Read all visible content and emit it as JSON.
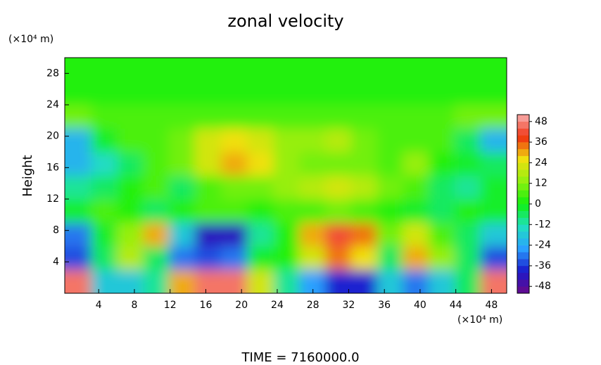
{
  "chart_data": {
    "type": "contour",
    "title": "zonal velocity",
    "ylabel": "Height",
    "yunit": "(×10⁴ m)",
    "xunit": "(×10⁴ m)",
    "footer": "TIME = 7160000.0",
    "xlim": [
      0.2,
      49.7
    ],
    "ylim": [
      0,
      30
    ],
    "xticks": [
      4,
      8,
      12,
      16,
      20,
      24,
      28,
      32,
      36,
      40,
      44,
      48
    ],
    "yticks": [
      4,
      8,
      12,
      16,
      20,
      24,
      28
    ],
    "x": [
      1.7,
      4.6,
      7.5,
      10.4,
      13.3,
      16.2,
      19.2,
      22.1,
      25.0,
      27.9,
      30.8,
      33.7,
      36.6,
      39.5,
      42.4,
      45.3,
      48.2
    ],
    "y": [
      1.5,
      4.5,
      7.5,
      10.5,
      13.5,
      16.5,
      19.5,
      22.5,
      25.5,
      28.5
    ],
    "z": [
      [
        44,
        -18,
        -20,
        -10,
        30,
        46,
        46,
        20,
        -10,
        -25,
        -40,
        -38,
        -20,
        -32,
        -20,
        -5,
        44
      ],
      [
        -34,
        -5,
        16,
        -8,
        -32,
        -36,
        -30,
        -4,
        2,
        20,
        32,
        24,
        -6,
        28,
        14,
        -6,
        -34
      ],
      [
        -32,
        -2,
        14,
        30,
        -20,
        -42,
        -44,
        -12,
        0,
        30,
        40,
        34,
        10,
        20,
        6,
        -8,
        -20
      ],
      [
        -4,
        4,
        2,
        -6,
        0,
        4,
        6,
        2,
        4,
        6,
        8,
        6,
        2,
        -2,
        -6,
        0,
        -4
      ],
      [
        -10,
        -6,
        2,
        6,
        -8,
        4,
        8,
        10,
        14,
        18,
        20,
        16,
        10,
        4,
        -6,
        -10,
        -4
      ],
      [
        -22,
        -16,
        -6,
        4,
        8,
        22,
        30,
        24,
        12,
        8,
        10,
        8,
        4,
        14,
        2,
        -2,
        -6
      ],
      [
        -24,
        -4,
        4,
        6,
        10,
        22,
        26,
        20,
        14,
        14,
        16,
        10,
        6,
        6,
        4,
        -6,
        -24
      ],
      [
        8,
        6,
        6,
        6,
        6,
        6,
        6,
        6,
        6,
        6,
        6,
        6,
        6,
        6,
        6,
        8,
        8
      ],
      [
        2,
        2,
        2,
        2,
        2,
        1,
        1,
        1,
        1,
        1,
        1,
        1,
        2,
        2,
        2,
        2,
        2
      ],
      [
        1,
        1,
        1,
        1,
        1,
        1,
        1,
        1,
        1,
        1,
        1,
        1,
        1,
        1,
        1,
        1,
        1
      ]
    ],
    "clim": [
      -52,
      52
    ],
    "level_step": 4,
    "cticks": [
      -48,
      -36,
      -24,
      -12,
      0,
      12,
      24,
      36,
      48
    ],
    "colormap": [
      "#6a0a8a",
      "#1a1acc",
      "#2aa0ff",
      "#20e0c0",
      "#10f010",
      "#90f010",
      "#f0e010",
      "#f03010",
      "#f8b0b0"
    ]
  }
}
